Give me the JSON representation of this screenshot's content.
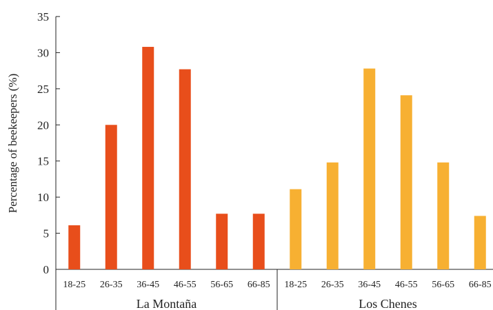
{
  "chart_data": {
    "type": "bar",
    "ylabel": "Percentage of beekeepers (%)",
    "ylim": [
      0,
      35
    ],
    "yticks": [
      0,
      5,
      10,
      15,
      20,
      25,
      30,
      35
    ],
    "groups": [
      {
        "name": "La Montaña",
        "color": "#e84e1b",
        "categories": [
          "18-25",
          "26-35",
          "36-45",
          "46-55",
          "56-65",
          "66-85"
        ],
        "values": [
          6.1,
          20.0,
          30.8,
          27.7,
          7.7,
          7.7
        ]
      },
      {
        "name": "Los Chenes",
        "color": "#f7b032",
        "categories": [
          "18-25",
          "26-35",
          "36-45",
          "46-55",
          "56-65",
          "66-85"
        ],
        "values": [
          11.1,
          14.8,
          27.8,
          24.1,
          14.8,
          7.4
        ]
      }
    ]
  }
}
